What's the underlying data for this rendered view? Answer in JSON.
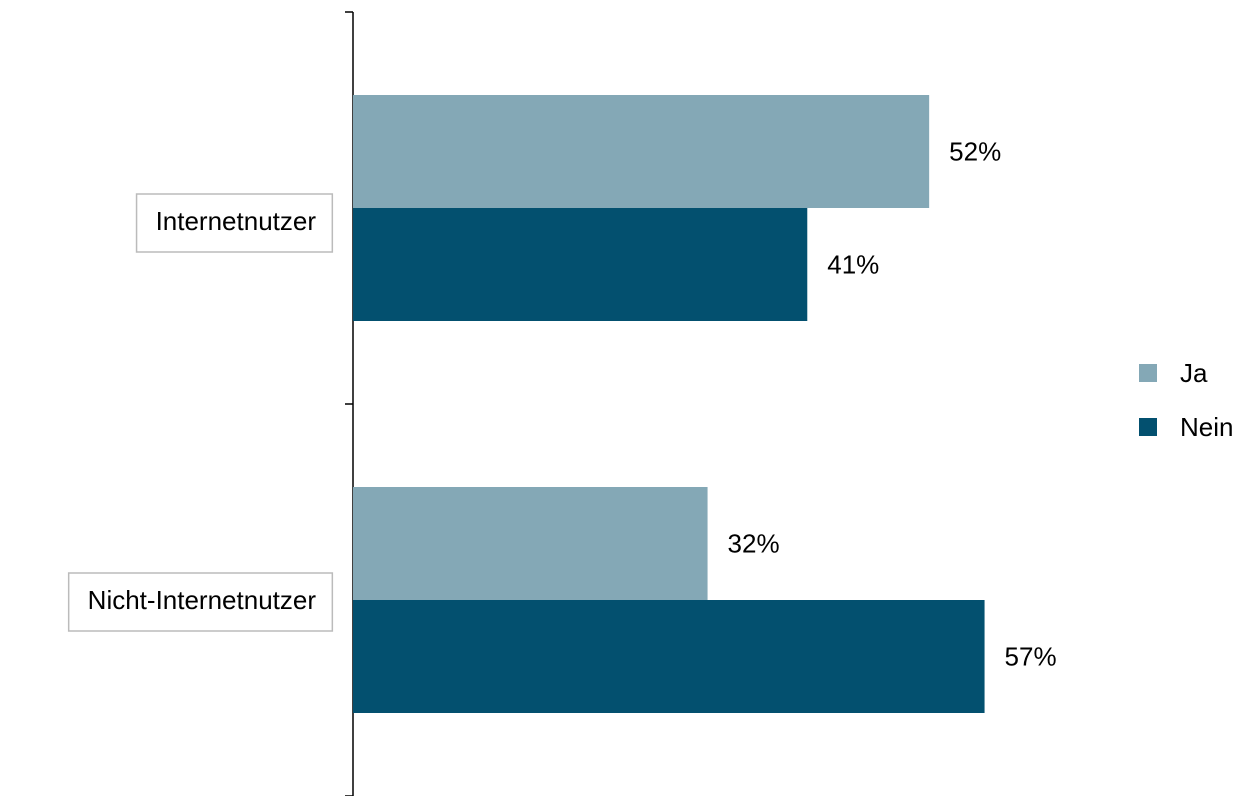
{
  "chart_data": {
    "type": "bar",
    "orientation": "horizontal",
    "categories": [
      "Internetnutzer",
      "Nicht-Internetnutzer"
    ],
    "series": [
      {
        "name": "Ja",
        "color": "#84a8b6",
        "values": [
          52,
          32
        ],
        "value_labels": [
          "52%",
          "32%"
        ]
      },
      {
        "name": "Nein",
        "color": "#03506f",
        "values": [
          41,
          57
        ],
        "value_labels": [
          "41%",
          "57%"
        ]
      }
    ],
    "legend": "right"
  }
}
